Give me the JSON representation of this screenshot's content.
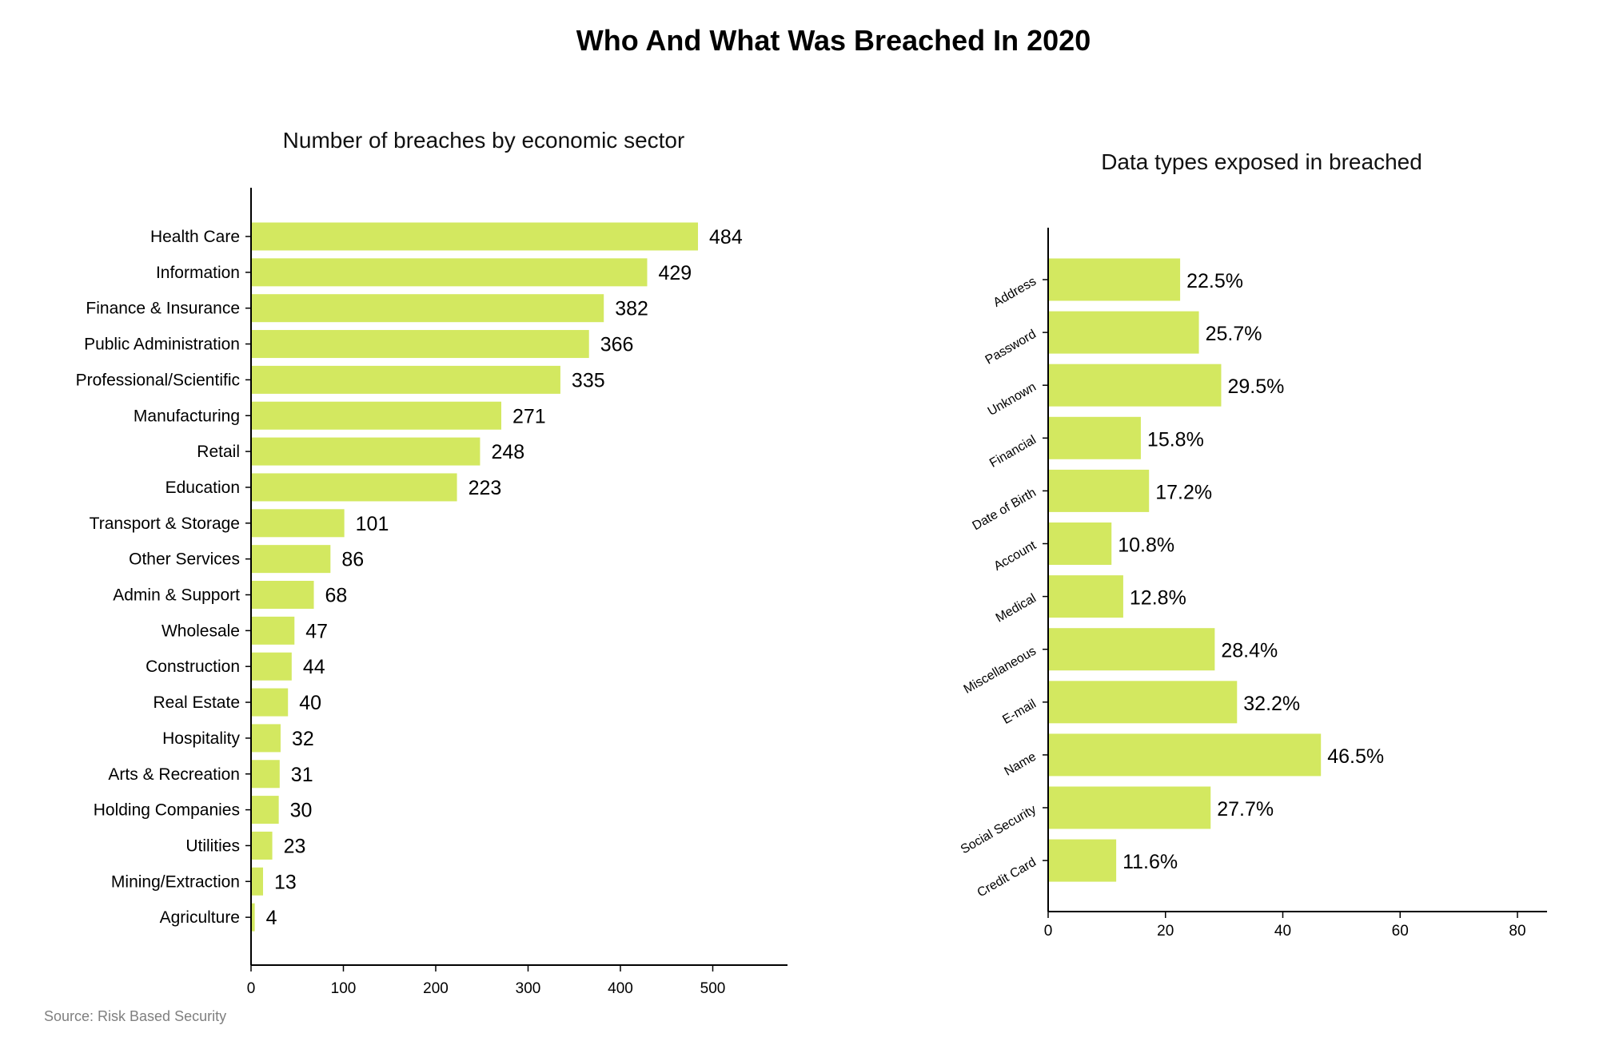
{
  "title": "Who And What Was Breached In 2020",
  "source": "Source: Risk Based Security",
  "colors": {
    "bar": "#d3e860",
    "axis": "#000000"
  },
  "chart_data": [
    {
      "type": "bar",
      "orientation": "horizontal",
      "title": "Number of breaches by economic sector",
      "xlabel": "",
      "ylabel": "",
      "xlim": [
        0,
        580
      ],
      "xticks": [
        0,
        100,
        200,
        300,
        400,
        500
      ],
      "grid": false,
      "categories": [
        "Health Care",
        "Information",
        "Finance & Insurance",
        "Public Administration",
        "Professional/Scientific",
        "Manufacturing",
        "Retail",
        "Education",
        "Transport & Storage",
        "Other Services",
        "Admin & Support",
        "Wholesale",
        "Construction",
        "Real Estate",
        "Hospitality",
        "Arts & Recreation",
        "Holding Companies",
        "Utilities",
        "Mining/Extraction",
        "Agriculture"
      ],
      "values": [
        484,
        429,
        382,
        366,
        335,
        271,
        248,
        223,
        101,
        86,
        68,
        47,
        44,
        40,
        32,
        31,
        30,
        23,
        13,
        4
      ],
      "value_labels": [
        "484",
        "429",
        "382",
        "366",
        "335",
        "271",
        "248",
        "223",
        "101",
        "86",
        "68",
        "47",
        "44",
        "40",
        "32",
        "31",
        "30",
        "23",
        "13",
        "4"
      ]
    },
    {
      "type": "bar",
      "orientation": "horizontal",
      "title": "Data types exposed in breached",
      "xlabel": "",
      "ylabel": "",
      "xlim": [
        0,
        85
      ],
      "xticks": [
        0,
        20,
        40,
        60,
        80
      ],
      "grid": false,
      "categories": [
        "Address",
        "Password",
        "Unknown",
        "Financial",
        "Date of Birth",
        "Account",
        "Medical",
        "Miscellaneous",
        "E-mail",
        "Name",
        "Social Security",
        "Credit Card"
      ],
      "values": [
        22.5,
        25.7,
        29.5,
        15.8,
        17.2,
        10.8,
        12.8,
        28.4,
        32.2,
        46.5,
        27.7,
        11.6
      ],
      "value_labels": [
        "22.5%",
        "25.7%",
        "29.5%",
        "15.8%",
        "17.2%",
        "10.8%",
        "12.8%",
        "28.4%",
        "32.2%",
        "46.5%",
        "27.7%",
        "11.6%"
      ]
    }
  ]
}
